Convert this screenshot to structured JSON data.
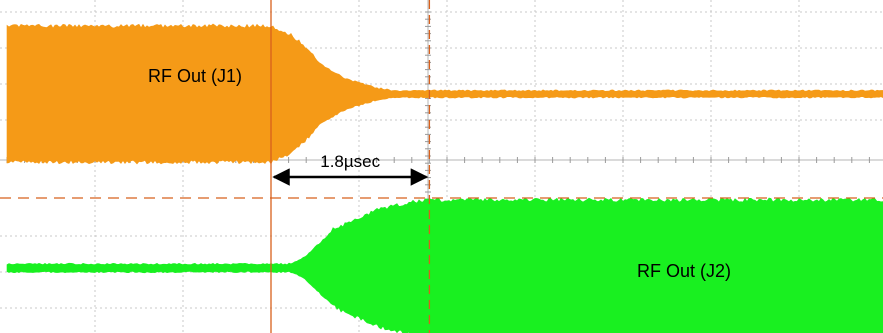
{
  "chart_data": {
    "type": "line",
    "title": "",
    "xlabel": "",
    "ylabel": "",
    "grid": true,
    "series": [
      {
        "label": "RF Out (J1)",
        "color": "#f59a17",
        "envelope": [
          {
            "t": 0.0,
            "amp": 1.0
          },
          {
            "t": 3.0,
            "amp": 1.0
          },
          {
            "t": 3.25,
            "amp": 0.85
          },
          {
            "t": 3.55,
            "amp": 0.45
          },
          {
            "t": 3.85,
            "amp": 0.22
          },
          {
            "t": 4.2,
            "amp": 0.08
          },
          {
            "t": 4.4,
            "amp": 0.04
          },
          {
            "t": 10.0,
            "amp": 0.04
          }
        ]
      },
      {
        "label": "RF Out (J2)",
        "color": "#19f020",
        "envelope": [
          {
            "t": 0.0,
            "amp": 0.05
          },
          {
            "t": 3.2,
            "amp": 0.05
          },
          {
            "t": 3.35,
            "amp": 0.12
          },
          {
            "t": 3.7,
            "amp": 0.55
          },
          {
            "t": 4.2,
            "amp": 0.85
          },
          {
            "t": 4.6,
            "amp": 0.97
          },
          {
            "t": 4.8,
            "amp": 1.0
          },
          {
            "t": 10.0,
            "amp": 1.0
          }
        ]
      }
    ],
    "annotations": [
      {
        "text": "1.8µsec",
        "from_t": 3.0,
        "to_t": 4.8
      }
    ]
  }
}
